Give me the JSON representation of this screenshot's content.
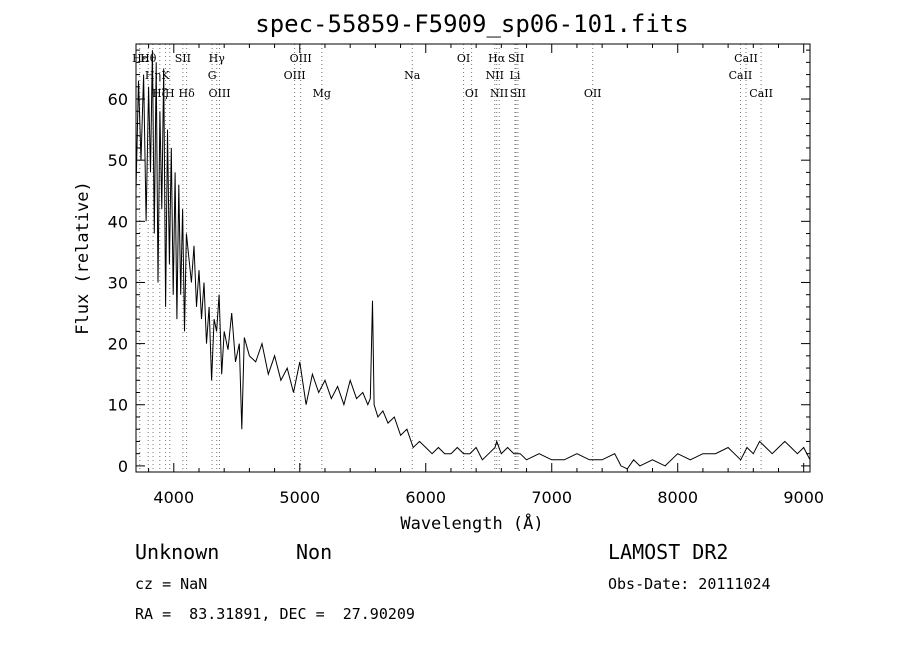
{
  "chart_data": {
    "type": "line",
    "title": "spec-55859-F5909_sp06-101.fits",
    "xlabel": "Wavelength (Å)",
    "ylabel": "Flux (relative)",
    "xlim": [
      3700,
      9050
    ],
    "ylim": [
      -1,
      69
    ],
    "xticks": [
      4000,
      5000,
      6000,
      7000,
      8000,
      9000
    ],
    "yticks": [
      0,
      10,
      20,
      30,
      40,
      50,
      60
    ],
    "grid": false,
    "series": [
      {
        "x": [
          3700,
          3720,
          3740,
          3760,
          3780,
          3800,
          3815,
          3830,
          3845,
          3860,
          3875,
          3890,
          3905,
          3920,
          3935,
          3950,
          3965,
          3980,
          3995,
          4010,
          4025,
          4040,
          4055,
          4070,
          4085,
          4100,
          4120,
          4140,
          4160,
          4180,
          4200,
          4220,
          4240,
          4260,
          4280,
          4300,
          4320,
          4340,
          4360,
          4380,
          4400,
          4430,
          4460,
          4490,
          4520,
          4540,
          4560,
          4600,
          4650,
          4700,
          4750,
          4800,
          4850,
          4900,
          4950,
          5000,
          5050,
          5100,
          5150,
          5200,
          5250,
          5300,
          5350,
          5400,
          5450,
          5500,
          5540,
          5560,
          5577,
          5590,
          5620,
          5660,
          5700,
          5750,
          5800,
          5850,
          5900,
          5950,
          6000,
          6050,
          6100,
          6150,
          6200,
          6250,
          6300,
          6350,
          6400,
          6450,
          6500,
          6550,
          6563,
          6600,
          6650,
          6700,
          6750,
          6800,
          6900,
          7000,
          7100,
          7200,
          7300,
          7400,
          7500,
          7550,
          7600,
          7650,
          7700,
          7800,
          7900,
          8000,
          8100,
          8200,
          8300,
          8400,
          8450,
          8500,
          8550,
          8600,
          8650,
          8700,
          8750,
          8800,
          8850,
          8900,
          8950,
          9000,
          9050
        ],
        "y": [
          45,
          63,
          50,
          64,
          40,
          62,
          48,
          68,
          38,
          66,
          30,
          58,
          42,
          65,
          26,
          55,
          33,
          52,
          28,
          48,
          24,
          46,
          28,
          42,
          22,
          38,
          34,
          30,
          36,
          26,
          32,
          24,
          30,
          20,
          26,
          14,
          24,
          22,
          28,
          15,
          22,
          19,
          25,
          17,
          20,
          6,
          21,
          18,
          17,
          20,
          15,
          18,
          14,
          16,
          12,
          17,
          10,
          15,
          12,
          14,
          11,
          13,
          10,
          14,
          11,
          12,
          10,
          11,
          27,
          10,
          8,
          9,
          7,
          8,
          5,
          6,
          3,
          4,
          3,
          2,
          3,
          2,
          2,
          3,
          2,
          2,
          3,
          1,
          2,
          3,
          4,
          2,
          3,
          2,
          2,
          1,
          2,
          1,
          1,
          2,
          1,
          1,
          2,
          0,
          -0.5,
          1,
          0,
          1,
          0,
          2,
          1,
          2,
          2,
          3,
          2,
          1,
          3,
          2,
          4,
          3,
          2,
          3,
          4,
          3,
          2,
          3,
          1
        ]
      }
    ],
    "lines": [
      {
        "label": "Hε",
        "x": 3730,
        "row": 1
      },
      {
        "label": "Hθ",
        "x": 3797,
        "row": 1
      },
      {
        "label": "Hη",
        "x": 3835,
        "row": 2
      },
      {
        "label": "K",
        "x": 3934,
        "row": 2
      },
      {
        "label": "Hζ",
        "x": 3889,
        "row": 3
      },
      {
        "label": "H",
        "x": 3968,
        "row": 3
      },
      {
        "label": "SII",
        "x": 4072,
        "row": 1
      },
      {
        "label": "Hδ",
        "x": 4102,
        "row": 3
      },
      {
        "label": "Hγ",
        "x": 4341,
        "row": 1
      },
      {
        "label": "G",
        "x": 4304,
        "row": 2
      },
      {
        "label": "OIII",
        "x": 4363,
        "row": 3
      },
      {
        "label": "OIII",
        "x": 5007,
        "row": 1
      },
      {
        "label": "OIII",
        "x": 4959,
        "row": 2
      },
      {
        "label": "Mg",
        "x": 5175,
        "row": 3
      },
      {
        "label": "Na",
        "x": 5893,
        "row": 2
      },
      {
        "label": "OI",
        "x": 6300,
        "row": 1
      },
      {
        "label": "OI",
        "x": 6364,
        "row": 3
      },
      {
        "label": "Hα",
        "x": 6563,
        "row": 1
      },
      {
        "label": "NII",
        "x": 6548,
        "row": 2
      },
      {
        "label": "NII",
        "x": 6583,
        "row": 3
      },
      {
        "label": "SII",
        "x": 6717,
        "row": 1
      },
      {
        "label": "Li",
        "x": 6708,
        "row": 2
      },
      {
        "label": "SII",
        "x": 6731,
        "row": 3
      },
      {
        "label": "OII",
        "x": 7325,
        "row": 3
      },
      {
        "label": "CaII",
        "x": 8542,
        "row": 1
      },
      {
        "label": "CaII",
        "x": 8498,
        "row": 2
      },
      {
        "label": "CaII",
        "x": 8662,
        "row": 3
      }
    ]
  },
  "info": {
    "object_class": "Unknown",
    "subclass": "Non",
    "survey": "LAMOST DR2",
    "redshift": "cz = NaN",
    "obs_date": "Obs-Date: 20111024",
    "coords": "RA =  83.31891, DEC =  27.90209"
  }
}
